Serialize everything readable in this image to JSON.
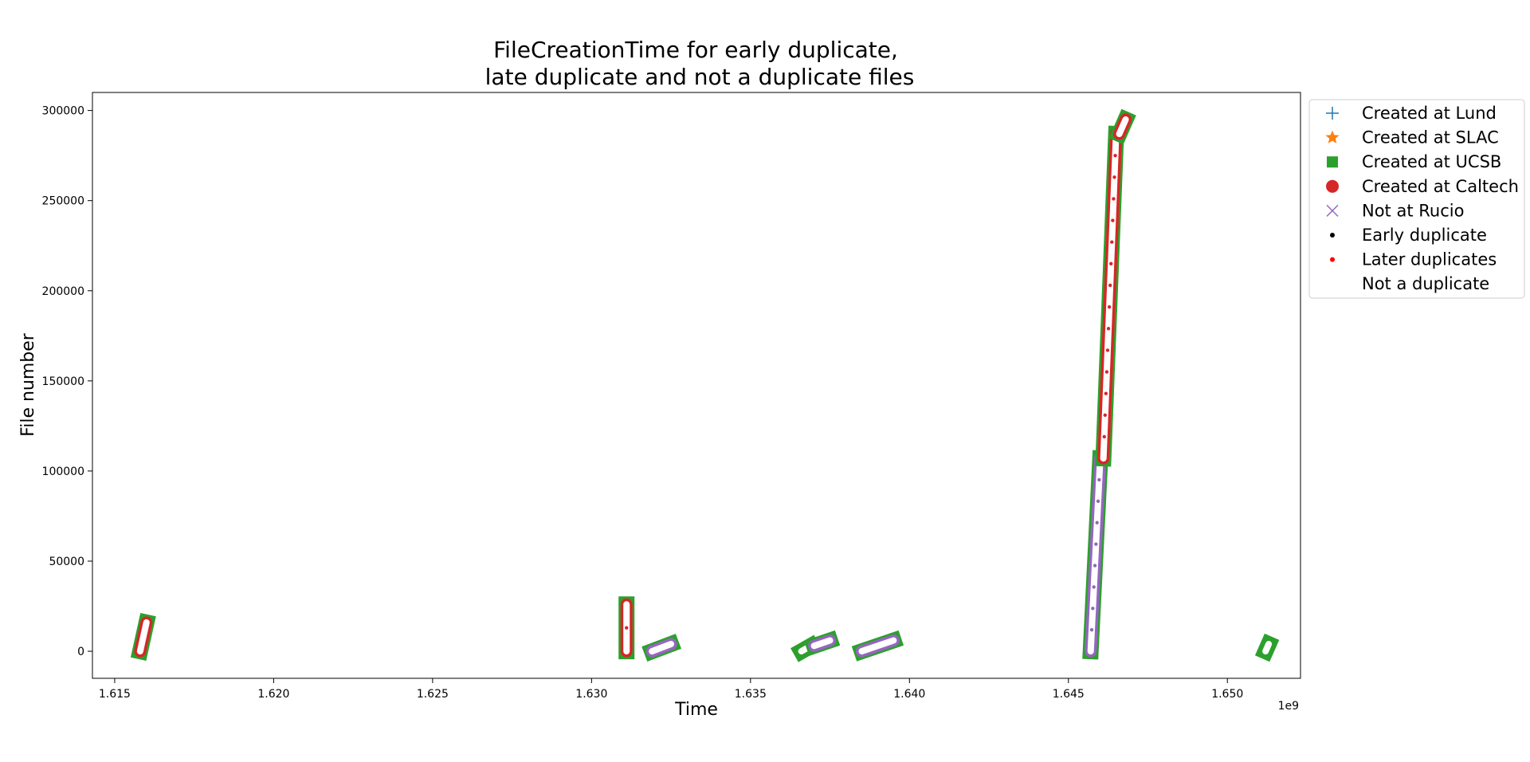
{
  "chart_data": {
    "type": "scatter",
    "title_lines": [
      "FileCreationTime for early duplicate,",
      "late duplicate and not a duplicate files"
    ],
    "xlabel": "Time",
    "ylabel": "File number",
    "x_offset_label": "1e9",
    "xlim": [
      1.6143,
      1.6523
    ],
    "ylim": [
      -15000,
      310000
    ],
    "x_ticks": [
      1.615,
      1.62,
      1.625,
      1.63,
      1.635,
      1.64,
      1.645,
      1.65
    ],
    "x_tick_labels": [
      "1.615",
      "1.620",
      "1.625",
      "1.630",
      "1.635",
      "1.640",
      "1.645",
      "1.650"
    ],
    "y_ticks": [
      0,
      50000,
      100000,
      150000,
      200000,
      250000,
      300000
    ],
    "y_tick_labels": [
      "0",
      "50000",
      "100000",
      "150000",
      "200000",
      "250000",
      "300000"
    ],
    "grid": false,
    "legend_position": "outside upper right",
    "legend": [
      {
        "label": "Created at Lund",
        "marker": "plus",
        "color": "#1f77b4"
      },
      {
        "label": "Created at SLAC",
        "marker": "star",
        "color": "#ff7f0e"
      },
      {
        "label": "Created at UCSB",
        "marker": "square",
        "color": "#2ca02c"
      },
      {
        "label": "Created at Caltech",
        "marker": "circle",
        "color": "#d62728"
      },
      {
        "label": "Not at Rucio",
        "marker": "x",
        "color": "#9467bd"
      },
      {
        "label": "Early duplicate",
        "marker": "dot",
        "color": "#000000"
      },
      {
        "label": "Later duplicates",
        "marker": "dot",
        "color": "#ff0000"
      },
      {
        "label": "Not a duplicate",
        "marker": "none",
        "color": "#ffffff"
      }
    ],
    "clusters": [
      {
        "x_start": 1.6158,
        "x_end": 1.616,
        "y_start": 0,
        "y_end": 16000,
        "edge_color": "#d62728"
      },
      {
        "x_start": 1.6311,
        "x_end": 1.6311,
        "y_start": 0,
        "y_end": 26000,
        "edge_color": "#d62728"
      },
      {
        "x_start": 1.6319,
        "x_end": 1.6325,
        "y_start": 0,
        "y_end": 4000,
        "edge_color": "#9467bd"
      },
      {
        "x_start": 1.6366,
        "x_end": 1.6369,
        "y_start": 0,
        "y_end": 3000,
        "edge_color": "#2ca02c"
      },
      {
        "x_start": 1.637,
        "x_end": 1.6375,
        "y_start": 3000,
        "y_end": 6000,
        "edge_color": "#9467bd"
      },
      {
        "x_start": 1.6385,
        "x_end": 1.6395,
        "y_start": 0,
        "y_end": 6000,
        "edge_color": "#9467bd"
      },
      {
        "x_start": 1.6457,
        "x_end": 1.646,
        "y_start": 0,
        "y_end": 107000,
        "edge_color": "#9467bd"
      },
      {
        "x_start": 1.6461,
        "x_end": 1.6465,
        "y_start": 107000,
        "y_end": 287000,
        "edge_color": "#d62728"
      },
      {
        "x_start": 1.6466,
        "x_end": 1.6468,
        "y_start": 287000,
        "y_end": 295000,
        "edge_color": "#d62728"
      },
      {
        "x_start": 1.6512,
        "x_end": 1.6513,
        "y_start": 0,
        "y_end": 4000,
        "edge_color": "#2ca02c"
      }
    ]
  }
}
